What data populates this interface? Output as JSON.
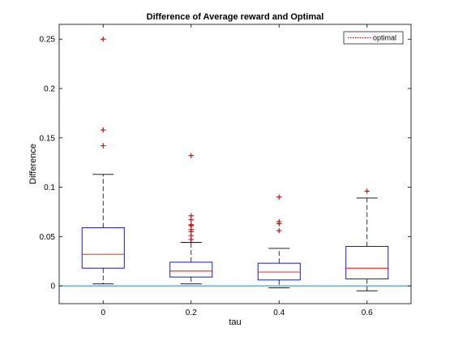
{
  "chart_data": {
    "type": "box",
    "title": "Difference of Average reward and Optimal",
    "xlabel": "tau",
    "ylabel": "Difference",
    "categories": [
      "0",
      "0.2",
      "0.4",
      "0.6"
    ],
    "xlim": [
      -0.5,
      3.5
    ],
    "ylim": [
      -0.018,
      0.265
    ],
    "yticks": [
      0,
      0.05,
      0.1,
      0.15,
      0.2,
      0.25
    ],
    "ytick_labels": [
      "0",
      "0.05",
      "0.1",
      "0.15",
      "0.2",
      "0.25"
    ],
    "boxes": [
      {
        "category": "0",
        "whisker_low": 0.002,
        "q1": 0.018,
        "median": 0.032,
        "q3": 0.059,
        "whisker_high": 0.113,
        "outliers": [
          0.142,
          0.158,
          0.25
        ]
      },
      {
        "category": "0.2",
        "whisker_low": 0.002,
        "q1": 0.009,
        "median": 0.015,
        "q3": 0.024,
        "whisker_high": 0.044,
        "outliers": [
          0.047,
          0.047,
          0.051,
          0.055,
          0.057,
          0.061,
          0.061,
          0.062,
          0.067,
          0.071,
          0.132
        ]
      },
      {
        "category": "0.4",
        "whisker_low": -0.002,
        "q1": 0.006,
        "median": 0.014,
        "q3": 0.023,
        "whisker_high": 0.038,
        "outliers": [
          0.056,
          0.063,
          0.065,
          0.09
        ]
      },
      {
        "category": "0.6",
        "whisker_low": -0.005,
        "q1": 0.007,
        "median": 0.018,
        "q3": 0.04,
        "whisker_high": 0.089,
        "outliers": [
          0.096
        ]
      }
    ],
    "reference_line": {
      "y": 0,
      "color": "#4a9fd5"
    },
    "legend": {
      "placement": "top-right",
      "entries": [
        {
          "label": "optimal",
          "style": "dotted",
          "color": "#cc0000"
        }
      ]
    },
    "colors": {
      "box": "#0000cc",
      "median": "#ff0000",
      "whisker": "#000000",
      "outlier": "#cc0000"
    },
    "grid": false
  }
}
